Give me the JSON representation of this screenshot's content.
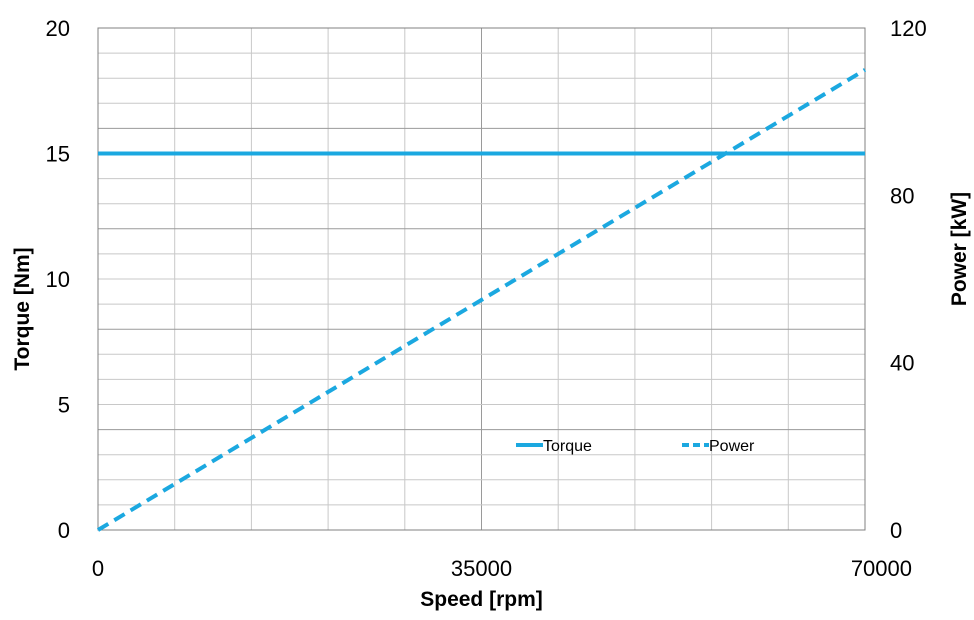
{
  "chart_data": {
    "type": "line",
    "x": [
      0,
      70000
    ],
    "xlabel": "Speed [rpm]",
    "xlim": [
      0,
      70000
    ],
    "xticks": [
      "0",
      "35000",
      "70000"
    ],
    "ylabel_left": "Torque [Nm]",
    "ylim_left": [
      0,
      20
    ],
    "yticks_left": [
      "0",
      "5",
      "10",
      "15",
      "20"
    ],
    "ylabel_right": "Power [kW]",
    "ylim_right": [
      0,
      120
    ],
    "yticks_right": [
      "0",
      "40",
      "80",
      "120"
    ],
    "grid": true,
    "legend_position": "bottom-right",
    "series": [
      {
        "name": "Torque",
        "axis": "left",
        "style": "solid",
        "color": "#1BA8E0",
        "values": [
          15,
          15
        ]
      },
      {
        "name": "Power",
        "axis": "right",
        "style": "dashed",
        "color": "#1BA8E0",
        "values": [
          0,
          110
        ]
      }
    ]
  }
}
